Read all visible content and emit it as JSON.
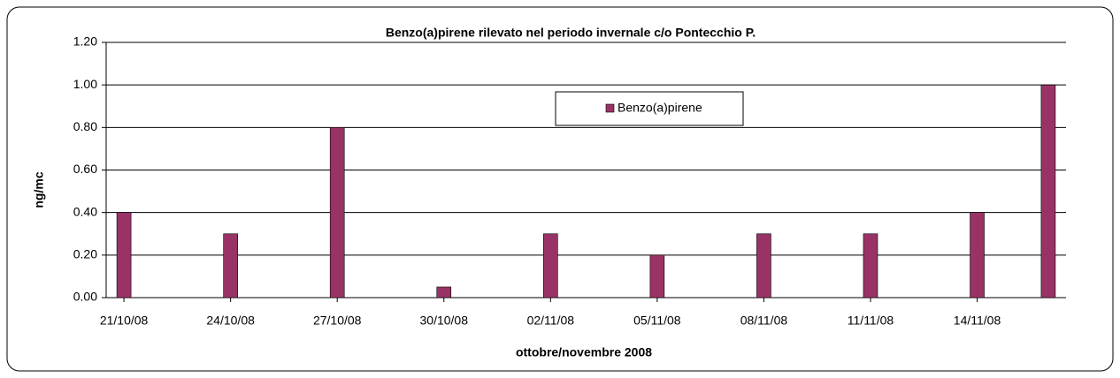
{
  "chart_data": {
    "type": "bar",
    "title": "Benzo(a)pirene rilevato nel periodo invernale c/o Pontecchio P.",
    "x_label": "ottobre/novembre 2008",
    "y_label": "ng/mc",
    "categories": [
      "21/10/08",
      null,
      null,
      "24/10/08",
      null,
      null,
      "27/10/08",
      null,
      null,
      "30/10/08",
      null,
      null,
      "02/11/08",
      null,
      null,
      "05/11/08",
      null,
      null,
      "08/11/08",
      null,
      null,
      "11/11/08",
      null,
      null,
      "14/11/08",
      null,
      null
    ],
    "series": [
      {
        "name": "Benzo(a)pirene",
        "color": "#993366",
        "values": [
          0.4,
          null,
          null,
          0.3,
          null,
          null,
          0.8,
          null,
          null,
          0.05,
          null,
          null,
          0.3,
          null,
          null,
          0.2,
          null,
          null,
          0.3,
          null,
          null,
          0.3,
          null,
          null,
          0.4,
          null,
          1.0
        ]
      }
    ],
    "ylim": [
      0,
      1.2
    ],
    "yticks": [
      {
        "value": 0,
        "label": "0.00"
      },
      {
        "value": 0.2,
        "label": "0.20"
      },
      {
        "value": 0.4,
        "label": "0.40"
      },
      {
        "value": 0.6,
        "label": "0.60"
      },
      {
        "value": 0.8,
        "label": "0.80"
      },
      {
        "value": 1.0,
        "label": "1.00"
      },
      {
        "value": 1.2,
        "label": "1.20"
      }
    ],
    "grid": true
  }
}
